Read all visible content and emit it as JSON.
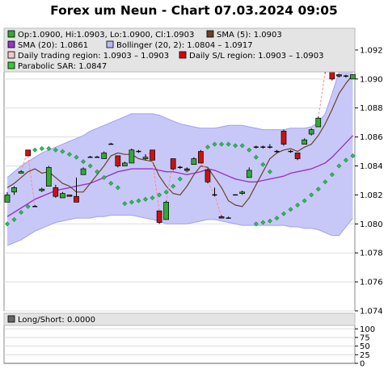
{
  "title": "Forex um Neun - Chart 07.03.2024 09:05",
  "legend_main": [
    {
      "label": "Op:1.0900, Hi:1.0903, Lo:1.0900, Cl:1.0903",
      "icon": "candle-square-icon",
      "color": "#33aa33"
    },
    {
      "label": "SMA (5): 1.0903",
      "icon": "sma5-square-icon",
      "color": "#6b4226"
    },
    {
      "label": "SMA (20): 1.0861",
      "icon": "sma20-square-icon",
      "color": "#9933cc"
    },
    {
      "label": "Bollinger (20, 2): 1.0804 – 1.0917",
      "icon": "bollinger-square-icon",
      "color": "#b8b8f4"
    },
    {
      "label": "Daily trading region: 1.0903 – 1.0903",
      "icon": "trading-region-square-icon",
      "color": "#f0c8c8"
    },
    {
      "label": "Daily S/L region: 1.0903 – 1.0903",
      "icon": "sl-region-square-icon",
      "color": "#dd0000"
    },
    {
      "label": "Parabolic SAR: 1.0847",
      "icon": "sar-square-icon",
      "color": "#33cc33"
    }
  ],
  "legend_lower": [
    {
      "label": "Long/Short: 0.0000",
      "icon": "longshort-square-icon",
      "color": "#666666"
    }
  ],
  "chart_data": [
    {
      "type": "candlestick",
      "title": "Forex um Neun - Chart 07.03.2024 09:05",
      "ylim": [
        1.074,
        1.0935
      ],
      "yticks": [
        "1.074",
        "1.076",
        "1.078",
        "1.080",
        "1.082",
        "1.084",
        "1.086",
        "1.088",
        "1.090",
        "1.092"
      ],
      "colors": {
        "up": "#33aa33",
        "down": "#cc1111",
        "doji": "#000000",
        "sma5": "#6b4226",
        "sma20": "#9933cc",
        "bollinger_fill": "#c8c8f8",
        "bollinger_edge": "#a0a0ee",
        "sar": "#228844",
        "sl_link": "#ff8888"
      },
      "candles": [
        {
          "o": 1.0815,
          "h": 1.0822,
          "l": 1.0815,
          "c": 1.082
        },
        {
          "o": 1.0822,
          "h": 1.0826,
          "l": 1.082,
          "c": 1.0825
        },
        {
          "o": 1.0835,
          "h": 1.0837,
          "l": 1.0835,
          "c": 1.0836
        },
        {
          "o": 1.0851,
          "h": 1.0851,
          "l": 1.0847,
          "c": 1.0847
        },
        {
          "o": 1.0812,
          "h": 1.0813,
          "l": 1.0812,
          "c": 1.0812
        },
        {
          "o": 1.0823,
          "h": 1.0825,
          "l": 1.0822,
          "c": 1.0824
        },
        {
          "o": 1.0826,
          "h": 1.084,
          "l": 1.0826,
          "c": 1.0839
        },
        {
          "o": 1.0825,
          "h": 1.0827,
          "l": 1.0818,
          "c": 1.0819
        },
        {
          "o": 1.0818,
          "h": 1.0822,
          "l": 1.0818,
          "c": 1.0821
        },
        {
          "o": 1.082,
          "h": 1.082,
          "l": 1.0819,
          "c": 1.0819
        },
        {
          "o": 1.0819,
          "h": 1.0832,
          "l": 1.0815,
          "c": 1.0815
        },
        {
          "o": 1.0834,
          "h": 1.0839,
          "l": 1.0834,
          "c": 1.0838
        },
        {
          "o": 1.0846,
          "h": 1.0847,
          "l": 1.0846,
          "c": 1.0846
        },
        {
          "o": 1.0846,
          "h": 1.0847,
          "l": 1.0846,
          "c": 1.0846
        },
        {
          "o": 1.0845,
          "h": 1.085,
          "l": 1.0845,
          "c": 1.0849
        },
        {
          "o": 1.0855,
          "h": 1.0856,
          "l": 1.0855,
          "c": 1.0855
        },
        {
          "o": 1.0847,
          "h": 1.0847,
          "l": 1.0839,
          "c": 1.084
        },
        {
          "o": 1.084,
          "h": 1.0843,
          "l": 1.084,
          "c": 1.0842
        },
        {
          "o": 1.0842,
          "h": 1.0852,
          "l": 1.0842,
          "c": 1.0851
        },
        {
          "o": 1.085,
          "h": 1.0851,
          "l": 1.0849,
          "c": 1.085
        },
        {
          "o": 1.0845,
          "h": 1.0848,
          "l": 1.0844,
          "c": 1.0846
        },
        {
          "o": 1.0851,
          "h": 1.0851,
          "l": 1.0844,
          "c": 1.0844
        },
        {
          "o": 1.0809,
          "h": 1.0809,
          "l": 1.08,
          "c": 1.0801
        },
        {
          "o": 1.0803,
          "h": 1.0816,
          "l": 1.0803,
          "c": 1.0815
        },
        {
          "o": 1.0845,
          "h": 1.0845,
          "l": 1.0837,
          "c": 1.0838
        },
        {
          "o": 1.0839,
          "h": 1.084,
          "l": 1.0838,
          "c": 1.0839
        },
        {
          "o": 1.0838,
          "h": 1.0839,
          "l": 1.0837,
          "c": 1.0837
        },
        {
          "o": 1.0841,
          "h": 1.0846,
          "l": 1.0841,
          "c": 1.0845
        },
        {
          "o": 1.085,
          "h": 1.0851,
          "l": 1.0842,
          "c": 1.0842
        },
        {
          "o": 1.0837,
          "h": 1.0838,
          "l": 1.0828,
          "c": 1.0829
        },
        {
          "o": 1.082,
          "h": 1.0825,
          "l": 1.0819,
          "c": 1.082
        },
        {
          "o": 1.0805,
          "h": 1.0806,
          "l": 1.0804,
          "c": 1.0804
        },
        {
          "o": 1.0804,
          "h": 1.0805,
          "l": 1.0804,
          "c": 1.0804
        },
        {
          "o": 1.082,
          "h": 1.082,
          "l": 1.082,
          "c": 1.082
        },
        {
          "o": 1.0821,
          "h": 1.0823,
          "l": 1.082,
          "c": 1.0822
        },
        {
          "o": 1.0832,
          "h": 1.0839,
          "l": 1.0832,
          "c": 1.0837
        },
        {
          "o": 1.0853,
          "h": 1.0854,
          "l": 1.0852,
          "c": 1.0853
        },
        {
          "o": 1.0853,
          "h": 1.0854,
          "l": 1.0852,
          "c": 1.0853
        },
        {
          "o": 1.0853,
          "h": 1.0855,
          "l": 1.0852,
          "c": 1.0853
        },
        {
          "o": 1.085,
          "h": 1.0851,
          "l": 1.0849,
          "c": 1.085
        },
        {
          "o": 1.0864,
          "h": 1.0865,
          "l": 1.0854,
          "c": 1.0855
        },
        {
          "o": 1.085,
          "h": 1.0851,
          "l": 1.0849,
          "c": 1.085
        },
        {
          "o": 1.0849,
          "h": 1.0849,
          "l": 1.0844,
          "c": 1.0845
        },
        {
          "o": 1.0855,
          "h": 1.0859,
          "l": 1.0855,
          "c": 1.0858
        },
        {
          "o": 1.0862,
          "h": 1.0866,
          "l": 1.0861,
          "c": 1.0865
        },
        {
          "o": 1.0867,
          "h": 1.0874,
          "l": 1.0867,
          "c": 1.0873
        },
        {
          "o": 1.0905,
          "h": 1.0912,
          "l": 1.0904,
          "c": 1.0911
        },
        {
          "o": 1.0905,
          "h": 1.0906,
          "l": 1.0899,
          "c": 1.09
        },
        {
          "o": 1.0903,
          "h": 1.0903,
          "l": 1.0901,
          "c": 1.0902
        },
        {
          "o": 1.0902,
          "h": 1.0903,
          "l": 1.0901,
          "c": 1.0902
        },
        {
          "o": 1.09,
          "h": 1.0903,
          "l": 1.09,
          "c": 1.0903
        }
      ],
      "sma5": [
        1.0825,
        1.0828,
        1.0832,
        1.0836,
        1.0838,
        1.0835,
        1.0836,
        1.0832,
        1.0828,
        1.0826,
        1.0822,
        1.0822,
        1.0828,
        1.0834,
        1.084,
        1.0847,
        1.0849,
        1.0848,
        1.0848,
        1.0845,
        1.0844,
        1.0843,
        1.0833,
        1.0826,
        1.0821,
        1.082,
        1.0826,
        1.0834,
        1.084,
        1.0839,
        1.0832,
        1.0825,
        1.0816,
        1.0813,
        1.0812,
        1.0818,
        1.0827,
        1.0836,
        1.0845,
        1.0849,
        1.0851,
        1.0852,
        1.085,
        1.0853,
        1.0855,
        1.0861,
        1.0869,
        1.0879,
        1.089,
        1.0897,
        1.0903
      ],
      "sma20": [
        1.0805,
        1.0808,
        1.0811,
        1.0814,
        1.0817,
        1.0819,
        1.0821,
        1.0823,
        1.0824,
        1.0825,
        1.0826,
        1.0827,
        1.0828,
        1.083,
        1.0832,
        1.0834,
        1.0836,
        1.0837,
        1.0838,
        1.0838,
        1.0838,
        1.0838,
        1.0837,
        1.0836,
        1.0836,
        1.0835,
        1.0834,
        1.0835,
        1.0836,
        1.0838,
        1.0837,
        1.0835,
        1.0833,
        1.0831,
        1.083,
        1.0829,
        1.0829,
        1.083,
        1.0831,
        1.0832,
        1.0833,
        1.0835,
        1.0836,
        1.0837,
        1.0838,
        1.084,
        1.0842,
        1.0846,
        1.0851,
        1.0856,
        1.0861
      ],
      "boll_upper": [
        1.0832,
        1.0836,
        1.084,
        1.0843,
        1.0846,
        1.0849,
        1.0851,
        1.0853,
        1.0855,
        1.0857,
        1.0859,
        1.0861,
        1.0864,
        1.0866,
        1.0868,
        1.087,
        1.0872,
        1.0874,
        1.0876,
        1.0876,
        1.0876,
        1.0876,
        1.0875,
        1.0873,
        1.0871,
        1.0869,
        1.0868,
        1.0867,
        1.0866,
        1.0866,
        1.0866,
        1.0867,
        1.0868,
        1.0868,
        1.0868,
        1.0867,
        1.0866,
        1.0865,
        1.0865,
        1.0865,
        1.0865,
        1.0866,
        1.0866,
        1.0866,
        1.0867,
        1.087,
        1.0876,
        1.089,
        1.0905,
        1.0912,
        1.0917
      ],
      "boll_lower": [
        1.0785,
        1.0787,
        1.0789,
        1.0792,
        1.0795,
        1.0797,
        1.0799,
        1.0801,
        1.0802,
        1.0803,
        1.0804,
        1.0804,
        1.0804,
        1.0805,
        1.0805,
        1.0806,
        1.0806,
        1.0806,
        1.0806,
        1.0805,
        1.0804,
        1.0803,
        1.0802,
        1.08,
        1.08,
        1.08,
        1.08,
        1.0801,
        1.0802,
        1.0803,
        1.0803,
        1.0802,
        1.0801,
        1.08,
        1.0799,
        1.0799,
        1.0799,
        1.0799,
        1.0799,
        1.0799,
        1.0799,
        1.0798,
        1.0798,
        1.0797,
        1.0797,
        1.0796,
        1.0794,
        1.0792,
        1.0792,
        1.0798,
        1.0804
      ],
      "sar": [
        1.08,
        1.0803,
        1.0808,
        1.0812,
        1.0851,
        1.0852,
        1.0852,
        1.0851,
        1.085,
        1.0848,
        1.0846,
        1.0843,
        1.084,
        1.0836,
        1.0832,
        1.0828,
        1.0825,
        1.0814,
        1.0815,
        1.0816,
        1.0817,
        1.0818,
        1.082,
        1.0822,
        1.0826,
        1.0831,
        1.0837,
        1.0843,
        1.0848,
        1.0853,
        1.0855,
        1.0855,
        1.0855,
        1.0854,
        1.0854,
        1.0851,
        1.0846,
        1.0841,
        1.0836,
        null,
        null,
        null,
        null,
        null,
        null,
        null,
        null,
        null,
        null,
        null,
        null
      ],
      "sar_tail": [
        1.08,
        1.0801,
        1.0802,
        1.0804,
        1.0807,
        1.081,
        1.0813,
        1.0816,
        1.082,
        1.0824,
        1.0829,
        1.0834,
        1.084,
        1.0844,
        1.0847
      ],
      "sl_links": [
        [
          2,
          3
        ],
        [
          3,
          4
        ],
        [
          20,
          21
        ],
        [
          21,
          22
        ],
        [
          23,
          24
        ],
        [
          28,
          29
        ],
        [
          29,
          30
        ],
        [
          30,
          31
        ],
        [
          45,
          46
        ]
      ]
    },
    {
      "type": "indicator",
      "series": [
        {
          "name": "Long/Short",
          "value": 0.0
        }
      ],
      "ylim": [
        0,
        110
      ],
      "yticks": [
        "0",
        "25",
        "50",
        "75",
        "100"
      ]
    }
  ]
}
